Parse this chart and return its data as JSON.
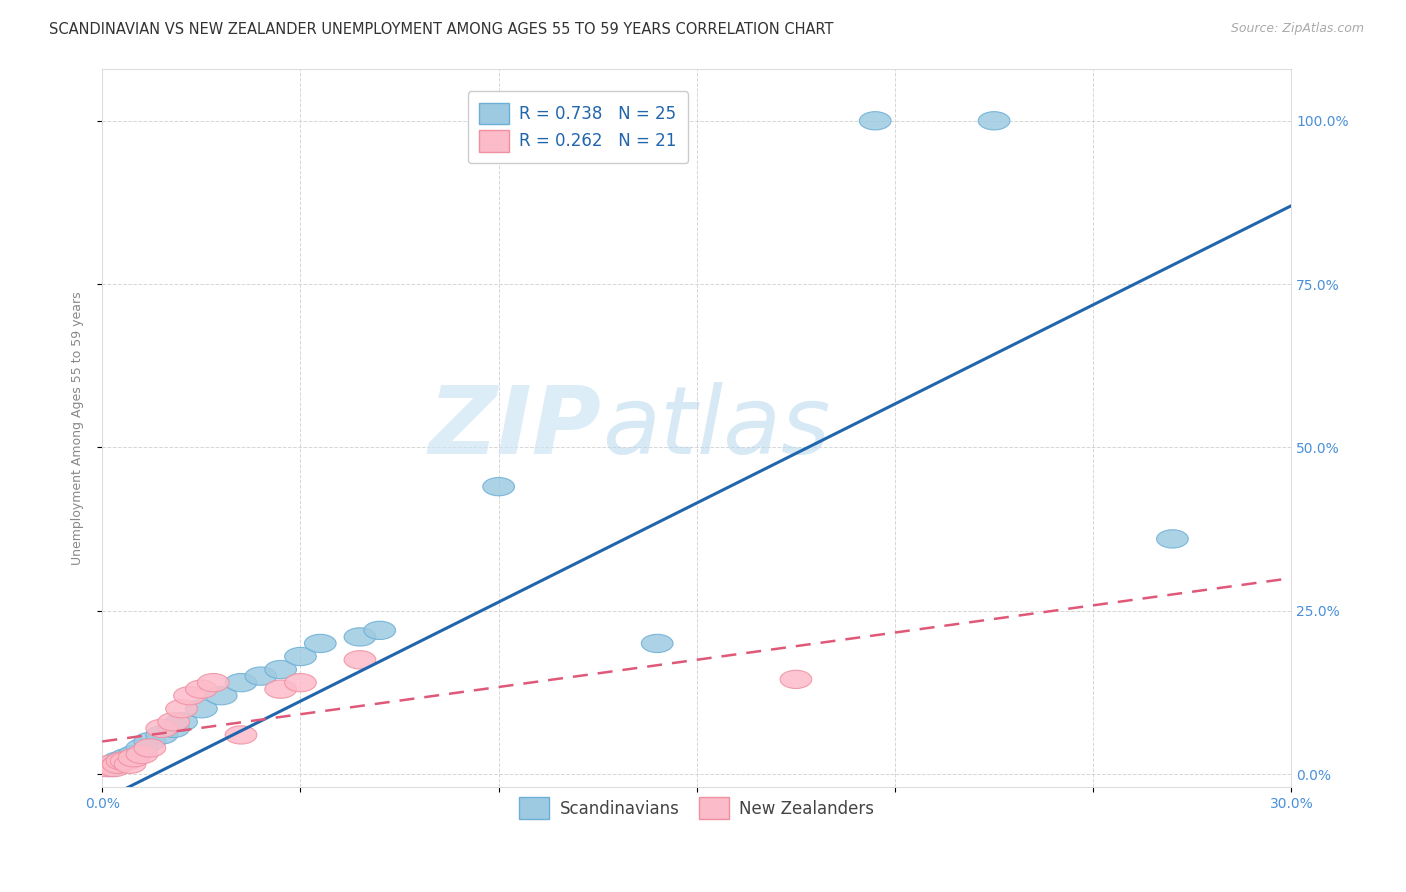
{
  "title": "SCANDINAVIAN VS NEW ZEALANDER UNEMPLOYMENT AMONG AGES 55 TO 59 YEARS CORRELATION CHART",
  "source": "Source: ZipAtlas.com",
  "ylabel": "Unemployment Among Ages 55 to 59 years",
  "xlim": [
    0.0,
    0.3
  ],
  "ylim": [
    -0.02,
    1.08
  ],
  "xticks": [
    0.0,
    0.05,
    0.1,
    0.15,
    0.2,
    0.25,
    0.3
  ],
  "yticks": [
    0.0,
    0.25,
    0.5,
    0.75,
    1.0
  ],
  "xtick_labels": [
    "0.0%",
    "",
    "",
    "",
    "",
    "",
    "30.0%"
  ],
  "ytick_labels_right": [
    "0.0%",
    "25.0%",
    "50.0%",
    "75.0%",
    "100.0%"
  ],
  "background_color": "#ffffff",
  "grid_color": "#cccccc",
  "watermark_zip": "ZIP",
  "watermark_atlas": "atlas",
  "blue_scatter": [
    [
      0.002,
      0.01
    ],
    [
      0.003,
      0.015
    ],
    [
      0.004,
      0.02
    ],
    [
      0.005,
      0.02
    ],
    [
      0.006,
      0.025
    ],
    [
      0.008,
      0.03
    ],
    [
      0.01,
      0.04
    ],
    [
      0.012,
      0.05
    ],
    [
      0.015,
      0.06
    ],
    [
      0.018,
      0.07
    ],
    [
      0.02,
      0.08
    ],
    [
      0.025,
      0.1
    ],
    [
      0.03,
      0.12
    ],
    [
      0.035,
      0.14
    ],
    [
      0.04,
      0.15
    ],
    [
      0.045,
      0.16
    ],
    [
      0.05,
      0.18
    ],
    [
      0.055,
      0.2
    ],
    [
      0.065,
      0.21
    ],
    [
      0.07,
      0.22
    ],
    [
      0.1,
      0.44
    ],
    [
      0.14,
      0.2
    ],
    [
      0.27,
      0.36
    ],
    [
      0.195,
      1.0
    ],
    [
      0.225,
      1.0
    ]
  ],
  "pink_scatter": [
    [
      0.001,
      0.01
    ],
    [
      0.002,
      0.015
    ],
    [
      0.003,
      0.01
    ],
    [
      0.004,
      0.015
    ],
    [
      0.005,
      0.02
    ],
    [
      0.006,
      0.02
    ],
    [
      0.007,
      0.015
    ],
    [
      0.008,
      0.025
    ],
    [
      0.01,
      0.03
    ],
    [
      0.012,
      0.04
    ],
    [
      0.015,
      0.07
    ],
    [
      0.018,
      0.08
    ],
    [
      0.02,
      0.1
    ],
    [
      0.022,
      0.12
    ],
    [
      0.025,
      0.13
    ],
    [
      0.028,
      0.14
    ],
    [
      0.035,
      0.06
    ],
    [
      0.045,
      0.13
    ],
    [
      0.05,
      0.14
    ],
    [
      0.065,
      0.175
    ],
    [
      0.175,
      0.145
    ]
  ],
  "blue_R": 0.738,
  "blue_N": 25,
  "pink_R": 0.262,
  "pink_N": 21,
  "blue_scatter_color": "#9ecae1",
  "blue_scatter_edge": "#6baed6",
  "pink_scatter_color": "#fcbbc9",
  "pink_scatter_edge": "#f08fa0",
  "blue_line_color": "#2166ac",
  "pink_line_color": "#e05878",
  "tick_color": "#4a90d9",
  "title_color": "#333333",
  "source_color": "#aaaaaa",
  "ylabel_color": "#888888",
  "legend_label_color": "#2166ac",
  "bottom_legend_color": "#444444",
  "title_fontsize": 10.5,
  "axis_label_fontsize": 9,
  "tick_fontsize": 10,
  "legend_fontsize": 12,
  "source_fontsize": 9
}
